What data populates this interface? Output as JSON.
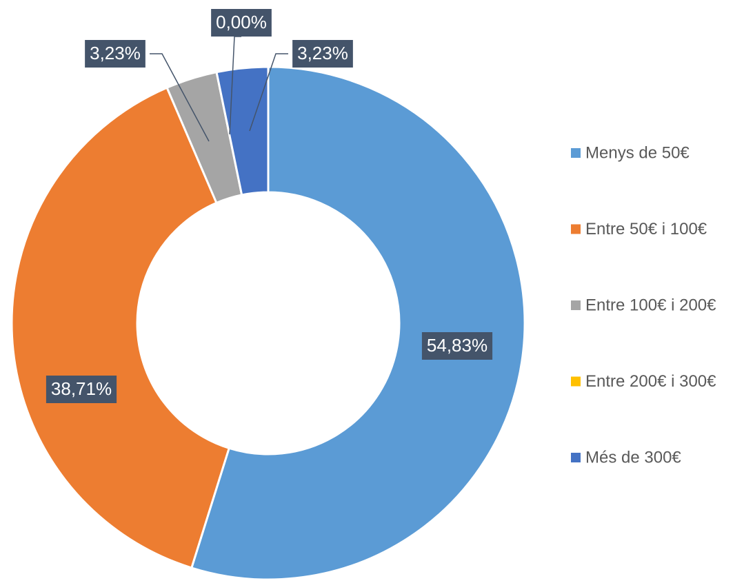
{
  "chart_data": {
    "type": "donut",
    "categories": [
      "Menys de 50€",
      "Entre 50€ i 100€",
      "Entre 100€ i 200€",
      "Entre 200€ i 300€",
      "Més de 300€"
    ],
    "values": [
      54.83,
      38.71,
      3.23,
      0,
      3.23
    ],
    "value_labels": [
      "54,83%",
      "38,71%",
      "3,23%",
      "0,00%",
      "3,23%"
    ],
    "colors": [
      "#5b9bd5",
      "#ed7d31",
      "#a5a5a5",
      "#ffc000",
      "#4472c4"
    ],
    "legend": "right"
  }
}
